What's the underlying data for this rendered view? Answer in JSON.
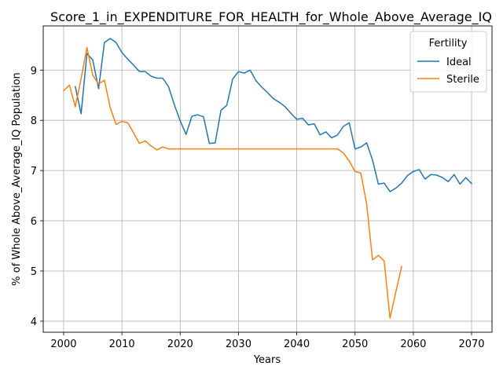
{
  "chart_data": {
    "type": "line",
    "title": "Score_1_in_EXPENDITURE_FOR_HEALTH_for_Whole_Above_Average_IQ",
    "xlabel": "Years",
    "ylabel": "% of Whole Above_Average_IQ Population",
    "xlim": [
      1996.5,
      2073.5
    ],
    "ylim": [
      3.78,
      9.88
    ],
    "x_ticks": [
      2000,
      2010,
      2020,
      2030,
      2040,
      2050,
      2060,
      2070
    ],
    "y_ticks": [
      4,
      5,
      6,
      7,
      8,
      9
    ],
    "grid": true,
    "legend": {
      "title": "Fertility",
      "placement": "top-right"
    },
    "series": [
      {
        "name": "Ideal",
        "color": "#1f77b4",
        "x": [
          2002,
          2003,
          2004,
          2005,
          2006,
          2007,
          2008,
          2009,
          2010,
          2011,
          2012,
          2013,
          2014,
          2015,
          2016,
          2017,
          2018,
          2019,
          2020,
          2021,
          2022,
          2023,
          2024,
          2025,
          2026,
          2027,
          2028,
          2029,
          2030,
          2031,
          2032,
          2033,
          2034,
          2035,
          2036,
          2037,
          2038,
          2039,
          2040,
          2041,
          2042,
          2043,
          2044,
          2045,
          2046,
          2047,
          2048,
          2049,
          2050,
          2051,
          2052,
          2053,
          2054,
          2055,
          2056,
          2057,
          2058,
          2059,
          2060,
          2061,
          2062,
          2063,
          2064,
          2065,
          2066,
          2067,
          2068,
          2069,
          2070
        ],
        "y": [
          8.67,
          8.13,
          9.33,
          9.2,
          8.63,
          9.55,
          9.63,
          9.55,
          9.35,
          9.22,
          9.1,
          8.97,
          8.97,
          8.88,
          8.84,
          8.84,
          8.67,
          8.31,
          7.99,
          7.72,
          8.08,
          8.11,
          8.07,
          7.54,
          7.55,
          8.2,
          8.3,
          8.82,
          8.97,
          8.94,
          9.0,
          8.79,
          8.66,
          8.55,
          8.43,
          8.36,
          8.27,
          8.14,
          8.02,
          8.04,
          7.91,
          7.93,
          7.71,
          7.77,
          7.65,
          7.71,
          7.88,
          7.95,
          7.43,
          7.47,
          7.55,
          7.21,
          6.73,
          6.75,
          6.58,
          6.65,
          6.75,
          6.9,
          6.98,
          7.02,
          6.83,
          6.92,
          6.91,
          6.86,
          6.78,
          6.92,
          6.73,
          6.86,
          6.74
        ]
      },
      {
        "name": "Sterile",
        "color": "#ff7f0e",
        "x": [
          2000,
          2001,
          2002,
          2003,
          2004,
          2005,
          2006,
          2007,
          2008,
          2009,
          2010,
          2011,
          2012,
          2013,
          2014,
          2015,
          2016,
          2017,
          2018,
          2019,
          2020,
          2021,
          2022,
          2023,
          2024,
          2025,
          2026,
          2027,
          2028,
          2029,
          2030,
          2031,
          2032,
          2033,
          2034,
          2035,
          2036,
          2037,
          2038,
          2039,
          2040,
          2041,
          2042,
          2043,
          2044,
          2045,
          2046,
          2047,
          2048,
          2049,
          2050,
          2051,
          2052,
          2053,
          2054,
          2055,
          2056,
          2057,
          2058
        ],
        "y": [
          8.59,
          8.7,
          8.27,
          8.83,
          9.45,
          8.9,
          8.72,
          8.8,
          8.25,
          7.92,
          7.98,
          7.95,
          7.75,
          7.54,
          7.59,
          7.49,
          7.41,
          7.47,
          7.43,
          7.43,
          7.43,
          7.43,
          7.43,
          7.43,
          7.43,
          7.43,
          7.43,
          7.43,
          7.43,
          7.43,
          7.43,
          7.43,
          7.43,
          7.43,
          7.43,
          7.43,
          7.43,
          7.43,
          7.43,
          7.43,
          7.43,
          7.43,
          7.43,
          7.43,
          7.43,
          7.43,
          7.43,
          7.43,
          7.35,
          7.19,
          6.98,
          6.95,
          6.33,
          5.22,
          5.31,
          5.2,
          4.06,
          4.58,
          5.09
        ]
      }
    ]
  }
}
